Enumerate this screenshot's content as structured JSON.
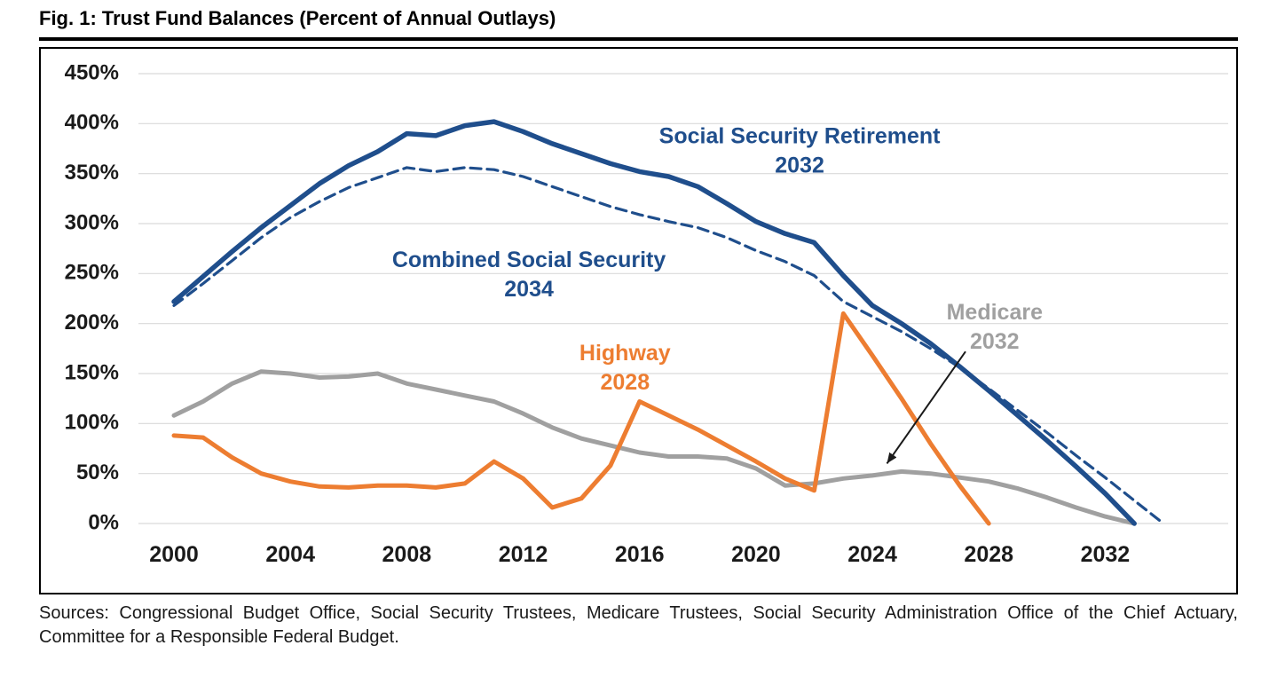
{
  "figure": {
    "title": "Fig. 1: Trust Fund Balances (Percent of Annual Outlays)",
    "sources": "Sources: Congressional Budget Office, Social Security Trustees, Medicare Trustees, Social Security Administration Office of the Chief Actuary, Committee for a Responsible Federal Budget."
  },
  "chart_data": {
    "type": "line",
    "title": "Fig. 1: Trust Fund Balances (Percent of Annual Outlays)",
    "xlabel": "",
    "ylabel": "Percent of Annual Outlays",
    "ylim": [
      0,
      450
    ],
    "yticks": [
      0,
      50,
      100,
      150,
      200,
      250,
      300,
      350,
      400,
      450
    ],
    "ytick_suffix": "%",
    "xlim": [
      2000,
      2034
    ],
    "xticks": [
      2000,
      2004,
      2008,
      2012,
      2016,
      2020,
      2024,
      2028,
      2032
    ],
    "grid": "horizontal",
    "legend_position": "inline-annotations",
    "colors": {
      "navy": "#1f4e8c",
      "orange": "#ed7d31",
      "gray": "#a0a0a0",
      "gridline": "#d9d9d9",
      "axis_text": "#1a1a1a"
    },
    "series": [
      {
        "name": "Medicare",
        "depletion_year": "2032",
        "color": "#a0a0a0",
        "style": "solid",
        "width": 5,
        "x": [
          2000,
          2001,
          2002,
          2003,
          2004,
          2005,
          2006,
          2007,
          2008,
          2009,
          2010,
          2011,
          2012,
          2013,
          2014,
          2015,
          2016,
          2017,
          2018,
          2019,
          2020,
          2021,
          2022,
          2023,
          2024,
          2025,
          2026,
          2027,
          2028,
          2029,
          2030,
          2031,
          2032,
          2033
        ],
        "values": [
          108,
          122,
          140,
          152,
          150,
          146,
          147,
          150,
          140,
          134,
          128,
          122,
          110,
          96,
          85,
          78,
          71,
          67,
          67,
          65,
          55,
          38,
          40,
          45,
          48,
          52,
          50,
          46,
          42,
          35,
          26,
          16,
          7,
          0
        ]
      },
      {
        "name": "Combined Social Security",
        "depletion_year": "2034",
        "color": "#1f4e8c",
        "style": "dashed",
        "width": 3.2,
        "x": [
          2000,
          2001,
          2002,
          2003,
          2004,
          2005,
          2006,
          2007,
          2008,
          2009,
          2010,
          2011,
          2012,
          2013,
          2014,
          2015,
          2016,
          2017,
          2018,
          2019,
          2020,
          2021,
          2022,
          2023,
          2024,
          2025,
          2026,
          2027,
          2028,
          2029,
          2030,
          2031,
          2032,
          2033,
          2034
        ],
        "values": [
          218,
          240,
          263,
          286,
          306,
          322,
          336,
          346,
          356,
          352,
          356,
          354,
          347,
          337,
          327,
          317,
          309,
          302,
          296,
          286,
          273,
          262,
          248,
          222,
          207,
          192,
          175,
          156,
          135,
          113,
          91,
          68,
          46,
          23,
          0
        ]
      },
      {
        "name": "Social Security Retirement",
        "depletion_year": "2032",
        "color": "#1f4e8c",
        "style": "solid",
        "width": 5.5,
        "x": [
          2000,
          2001,
          2002,
          2003,
          2004,
          2005,
          2006,
          2007,
          2008,
          2009,
          2010,
          2011,
          2012,
          2013,
          2014,
          2015,
          2016,
          2017,
          2018,
          2019,
          2020,
          2021,
          2022,
          2023,
          2024,
          2025,
          2026,
          2027,
          2028,
          2029,
          2030,
          2031,
          2032,
          2033
        ],
        "values": [
          222,
          247,
          272,
          296,
          318,
          340,
          358,
          372,
          390,
          388,
          398,
          402,
          392,
          380,
          370,
          360,
          352,
          347,
          337,
          320,
          302,
          290,
          281,
          248,
          218,
          200,
          180,
          157,
          133,
          108,
          83,
          57,
          30,
          0
        ]
      },
      {
        "name": "Highway",
        "depletion_year": "2028",
        "color": "#ed7d31",
        "style": "solid",
        "width": 5,
        "x": [
          2000,
          2001,
          2002,
          2003,
          2004,
          2005,
          2006,
          2007,
          2008,
          2009,
          2010,
          2011,
          2012,
          2013,
          2014,
          2015,
          2016,
          2017,
          2018,
          2019,
          2020,
          2021,
          2022,
          2023,
          2024,
          2025,
          2026,
          2027,
          2028
        ],
        "values": [
          88,
          86,
          66,
          50,
          42,
          37,
          36,
          38,
          38,
          36,
          40,
          62,
          45,
          16,
          25,
          58,
          122,
          108,
          94,
          78,
          62,
          45,
          33,
          210,
          168,
          125,
          80,
          38,
          0
        ]
      }
    ],
    "annotations": [
      {
        "name": "social-security-retirement",
        "lines": [
          "Social Security Retirement",
          "2032"
        ],
        "color": "#1f4e8c",
        "year": 2021.5,
        "pct": 372
      },
      {
        "name": "combined-social-security",
        "lines": [
          "Combined Social Security",
          "2034"
        ],
        "color": "#1f4e8c",
        "year": 2012.2,
        "pct": 248
      },
      {
        "name": "highway",
        "lines": [
          "Highway",
          "2028"
        ],
        "color": "#ed7d31",
        "year": 2015.5,
        "pct": 155
      },
      {
        "name": "medicare",
        "lines": [
          "Medicare",
          "2032"
        ],
        "color": "#a0a0a0",
        "year": 2028.2,
        "pct": 196,
        "arrow": {
          "from": {
            "year": 2027.2,
            "pct": 172
          },
          "to": {
            "year": 2024.5,
            "pct": 60
          }
        }
      }
    ]
  }
}
